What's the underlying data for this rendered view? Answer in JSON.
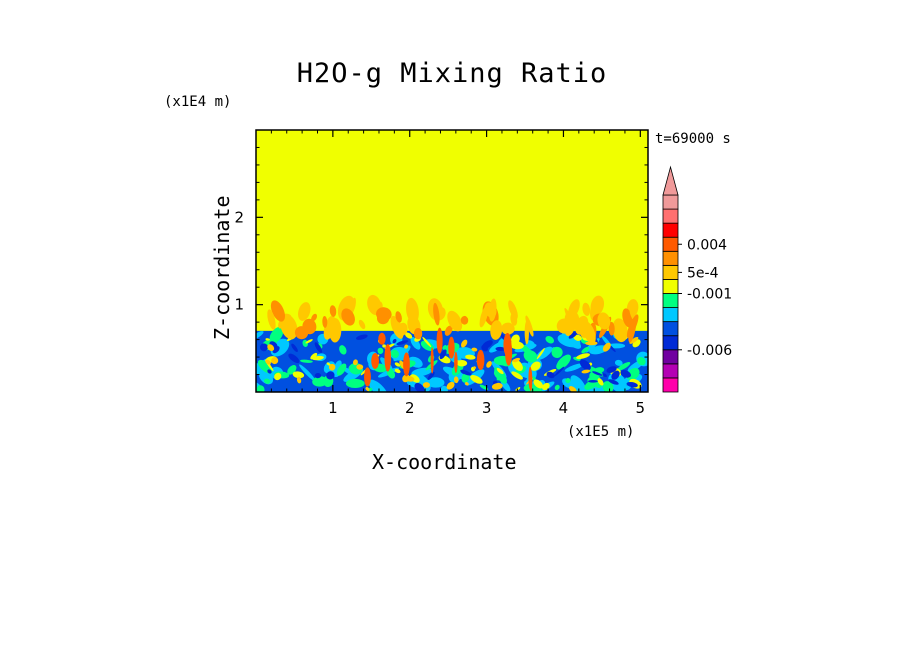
{
  "chart_data": {
    "type": "heatmap",
    "title": "H2O-g Mixing Ratio",
    "xlabel": "X-coordinate",
    "ylabel": "Z-coordinate",
    "x_multiplier": "(x1E5 m)",
    "y_multiplier": "(x1E4 m)",
    "annotation": "t=69000 s",
    "xlim": [
      0,
      5.1
    ],
    "ylim": [
      0,
      3.0
    ],
    "x_ticks": [
      {
        "value": 1,
        "label": "1"
      },
      {
        "value": 2,
        "label": "2"
      },
      {
        "value": 3,
        "label": "3"
      },
      {
        "value": 4,
        "label": "4"
      },
      {
        "value": 5,
        "label": "5"
      }
    ],
    "y_ticks": [
      {
        "value": 1,
        "label": "1"
      },
      {
        "value": 2,
        "label": "2"
      }
    ],
    "upper_layer": {
      "z_min": 0.7,
      "z_max": 3.0,
      "color": "#f0ff00",
      "description_value": 0.0
    },
    "boundary_layer_top": 0.7,
    "plume_top": 1.0,
    "colorbar": {
      "levels": [
        {
          "color": "#ff00aa"
        },
        {
          "color": "#b400b4"
        },
        {
          "color": "#7000a0"
        },
        {
          "color": "#002ad6"
        },
        {
          "color": "#0050e0"
        },
        {
          "color": "#00c8ff"
        },
        {
          "color": "#00ff80"
        },
        {
          "color": "#f0ff00"
        },
        {
          "color": "#ffc800"
        },
        {
          "color": "#ff9000"
        },
        {
          "color": "#ff5a00"
        },
        {
          "color": "#ff0000"
        },
        {
          "color": "#ff7070"
        },
        {
          "color": "#f09a9a"
        }
      ],
      "labels": [
        {
          "text": "0.004",
          "level": 10.5
        },
        {
          "text": "5e-4",
          "level": 8.5
        },
        {
          "text": "-0.001",
          "level": 7.0
        },
        {
          "text": "-0.006",
          "level": 3.0
        }
      ]
    }
  }
}
